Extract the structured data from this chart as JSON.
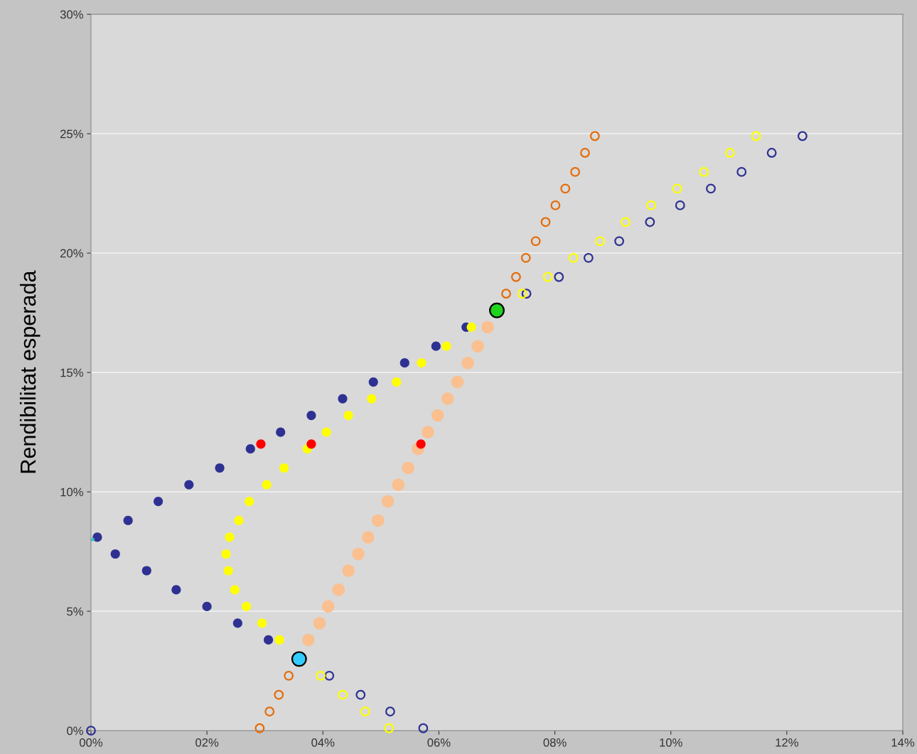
{
  "chart_data": {
    "type": "scatter",
    "ylabel": "Rendibilitat esperada",
    "xlim": [
      0,
      14
    ],
    "ylim": [
      0,
      30
    ],
    "xticks": [
      {
        "value": 0,
        "label": "00%"
      },
      {
        "value": 2,
        "label": "02%"
      },
      {
        "value": 4,
        "label": "04%"
      },
      {
        "value": 6,
        "label": "06%"
      },
      {
        "value": 8,
        "label": "08%"
      },
      {
        "value": 10,
        "label": "10%"
      },
      {
        "value": 12,
        "label": "12%"
      },
      {
        "value": 14,
        "label": "14%"
      }
    ],
    "yticks": [
      {
        "value": 0,
        "label": "0%"
      },
      {
        "value": 5,
        "label": "5%"
      },
      {
        "value": 10,
        "label": "10%"
      },
      {
        "value": 15,
        "label": "15%"
      },
      {
        "value": 20,
        "label": "20%"
      },
      {
        "value": 25,
        "label": "25%"
      },
      {
        "value": 30,
        "label": "30%"
      }
    ],
    "grid": "y",
    "legend": false,
    "series": [
      {
        "type": "bubble",
        "color": "#2e3192",
        "x": [
          0.11,
          0.42,
          0.64,
          0.96,
          1.16,
          1.47,
          1.69,
          2.0,
          2.22,
          2.53,
          2.75,
          3.06,
          3.27,
          3.8,
          4.34,
          4.87,
          5.41,
          5.95,
          6.47
        ],
        "values": [
          8.1,
          7.4,
          8.8,
          6.7,
          9.6,
          5.9,
          10.3,
          5.2,
          11.0,
          4.5,
          11.8,
          3.8,
          12.5,
          13.2,
          13.9,
          14.6,
          15.4,
          16.1,
          16.9
        ],
        "sizes": [
          0.45,
          0.45,
          0.45,
          0.45,
          0.45,
          0.45,
          0.45,
          0.45,
          0.45,
          0.45,
          0.45,
          0.45,
          0.45,
          0.45,
          0.45,
          0.45,
          0.45,
          0.45,
          0.45
        ]
      },
      {
        "color": "#2e3192",
        "x": [
          0,
          5.73,
          5.16,
          4.65,
          4.11,
          7.51,
          8.07,
          8.58,
          9.11,
          9.64,
          10.16,
          10.69,
          11.22,
          11.74,
          12.27
        ],
        "values": [
          0,
          0.1,
          0.8,
          1.5,
          2.3,
          18.3,
          19.0,
          19.8,
          20.5,
          21.3,
          22.0,
          22.7,
          23.4,
          24.2,
          24.9
        ]
      },
      {
        "type": "bubble",
        "color": "#ffff00",
        "x": [
          2.33,
          2.37,
          2.39,
          2.48,
          2.55,
          2.68,
          2.73,
          2.95,
          3.03,
          3.25,
          3.33,
          3.73,
          4.06,
          4.44,
          4.84,
          5.27,
          5.7,
          6.13,
          6.56
        ],
        "values": [
          7.4,
          6.7,
          8.1,
          5.9,
          8.8,
          5.2,
          9.6,
          4.5,
          10.3,
          3.8,
          11.0,
          11.8,
          12.5,
          13.2,
          13.9,
          14.6,
          15.4,
          16.1,
          16.9
        ],
        "sizes": [
          0.45,
          0.45,
          0.45,
          0.45,
          0.45,
          0.45,
          0.45,
          0.45,
          0.45,
          0.45,
          0.45,
          0.45,
          0.45,
          0.45,
          0.45,
          0.45,
          0.45,
          0.45,
          0.45
        ]
      },
      {
        "color": "#ffff00",
        "x": [
          3.96,
          4.34,
          4.73,
          5.14,
          7.44,
          7.88,
          8.32,
          8.78,
          9.22,
          9.66,
          10.11,
          10.57,
          11.02,
          11.47
        ],
        "values": [
          2.3,
          1.5,
          0.8,
          0.1,
          18.3,
          19.0,
          19.8,
          20.5,
          21.3,
          22.0,
          22.7,
          23.4,
          24.2,
          24.9
        ]
      },
      {
        "type": "bubble",
        "color": "#fac090",
        "x": [
          3.75,
          3.94,
          4.09,
          4.27,
          4.44,
          4.61,
          4.78,
          4.95,
          5.12,
          5.3,
          5.47,
          5.64,
          5.81,
          5.98,
          6.15,
          6.32,
          6.5,
          6.67,
          6.84
        ],
        "values": [
          3.8,
          4.5,
          5.2,
          5.9,
          6.7,
          7.4,
          8.1,
          8.8,
          9.6,
          10.3,
          11.0,
          11.8,
          12.5,
          13.2,
          13.9,
          14.6,
          15.4,
          16.1,
          16.9
        ],
        "sizes": [
          0.8,
          0.8,
          0.8,
          0.8,
          0.8,
          0.8,
          0.8,
          0.8,
          0.8,
          0.8,
          0.8,
          0.8,
          0.8,
          0.8,
          0.8,
          0.8,
          0.8,
          0.8,
          0.8
        ]
      },
      {
        "color": "#e46c0a",
        "x": [
          2.91,
          3.08,
          3.24,
          3.41,
          7.16,
          7.33,
          7.5,
          7.67,
          7.84,
          8.01,
          8.18,
          8.35,
          8.52,
          8.69
        ],
        "values": [
          0.1,
          0.8,
          1.5,
          2.3,
          18.3,
          19.0,
          19.8,
          20.5,
          21.3,
          22.0,
          22.7,
          23.4,
          24.2,
          24.9
        ]
      },
      {
        "type": "bubble",
        "color": "#ff0000",
        "x": [
          2.93,
          3.8,
          5.69
        ],
        "values": [
          12.0,
          12.0,
          12.0
        ],
        "sizes": [
          0.45,
          0.45,
          0.45
        ]
      },
      {
        "type": "bubble",
        "color": "#1fd41f",
        "x": [
          7.0
        ],
        "values": [
          17.6
        ],
        "sizes": [
          1
        ]
      },
      {
        "type": "bubble",
        "color": "#33ccff",
        "x": [
          3.59
        ],
        "values": [
          3.0
        ],
        "sizes": [
          1
        ]
      },
      {
        "type": "line",
        "color": "#40c0c0",
        "x": [
          0,
          0.06
        ],
        "values": [
          8.0,
          8.0
        ]
      }
    ]
  }
}
